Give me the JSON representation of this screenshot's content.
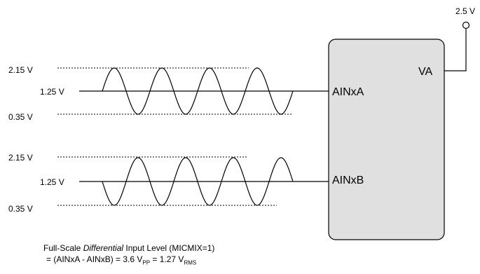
{
  "supply": {
    "voltage": "2.5 V"
  },
  "chip": {
    "pin_va": "VA",
    "pin_a": "AINxA",
    "pin_b": "AINxB"
  },
  "levels": {
    "max": "2.15 V",
    "mid": "1.25 V",
    "min": "0.35 V"
  },
  "caption": {
    "line1_pre": "Full-Scale ",
    "line1_em": "Differential",
    "line1_post": " Input Level (MICMIX=1)",
    "line2_a": "= (AINxA - AINxB) = 3.6 V",
    "sub_pp": "PP",
    "line2_b": " = 1.27 V",
    "sub_rms": "RMS"
  },
  "colors": {
    "chip_fill": "#e0e0e0",
    "stroke": "#000000"
  }
}
